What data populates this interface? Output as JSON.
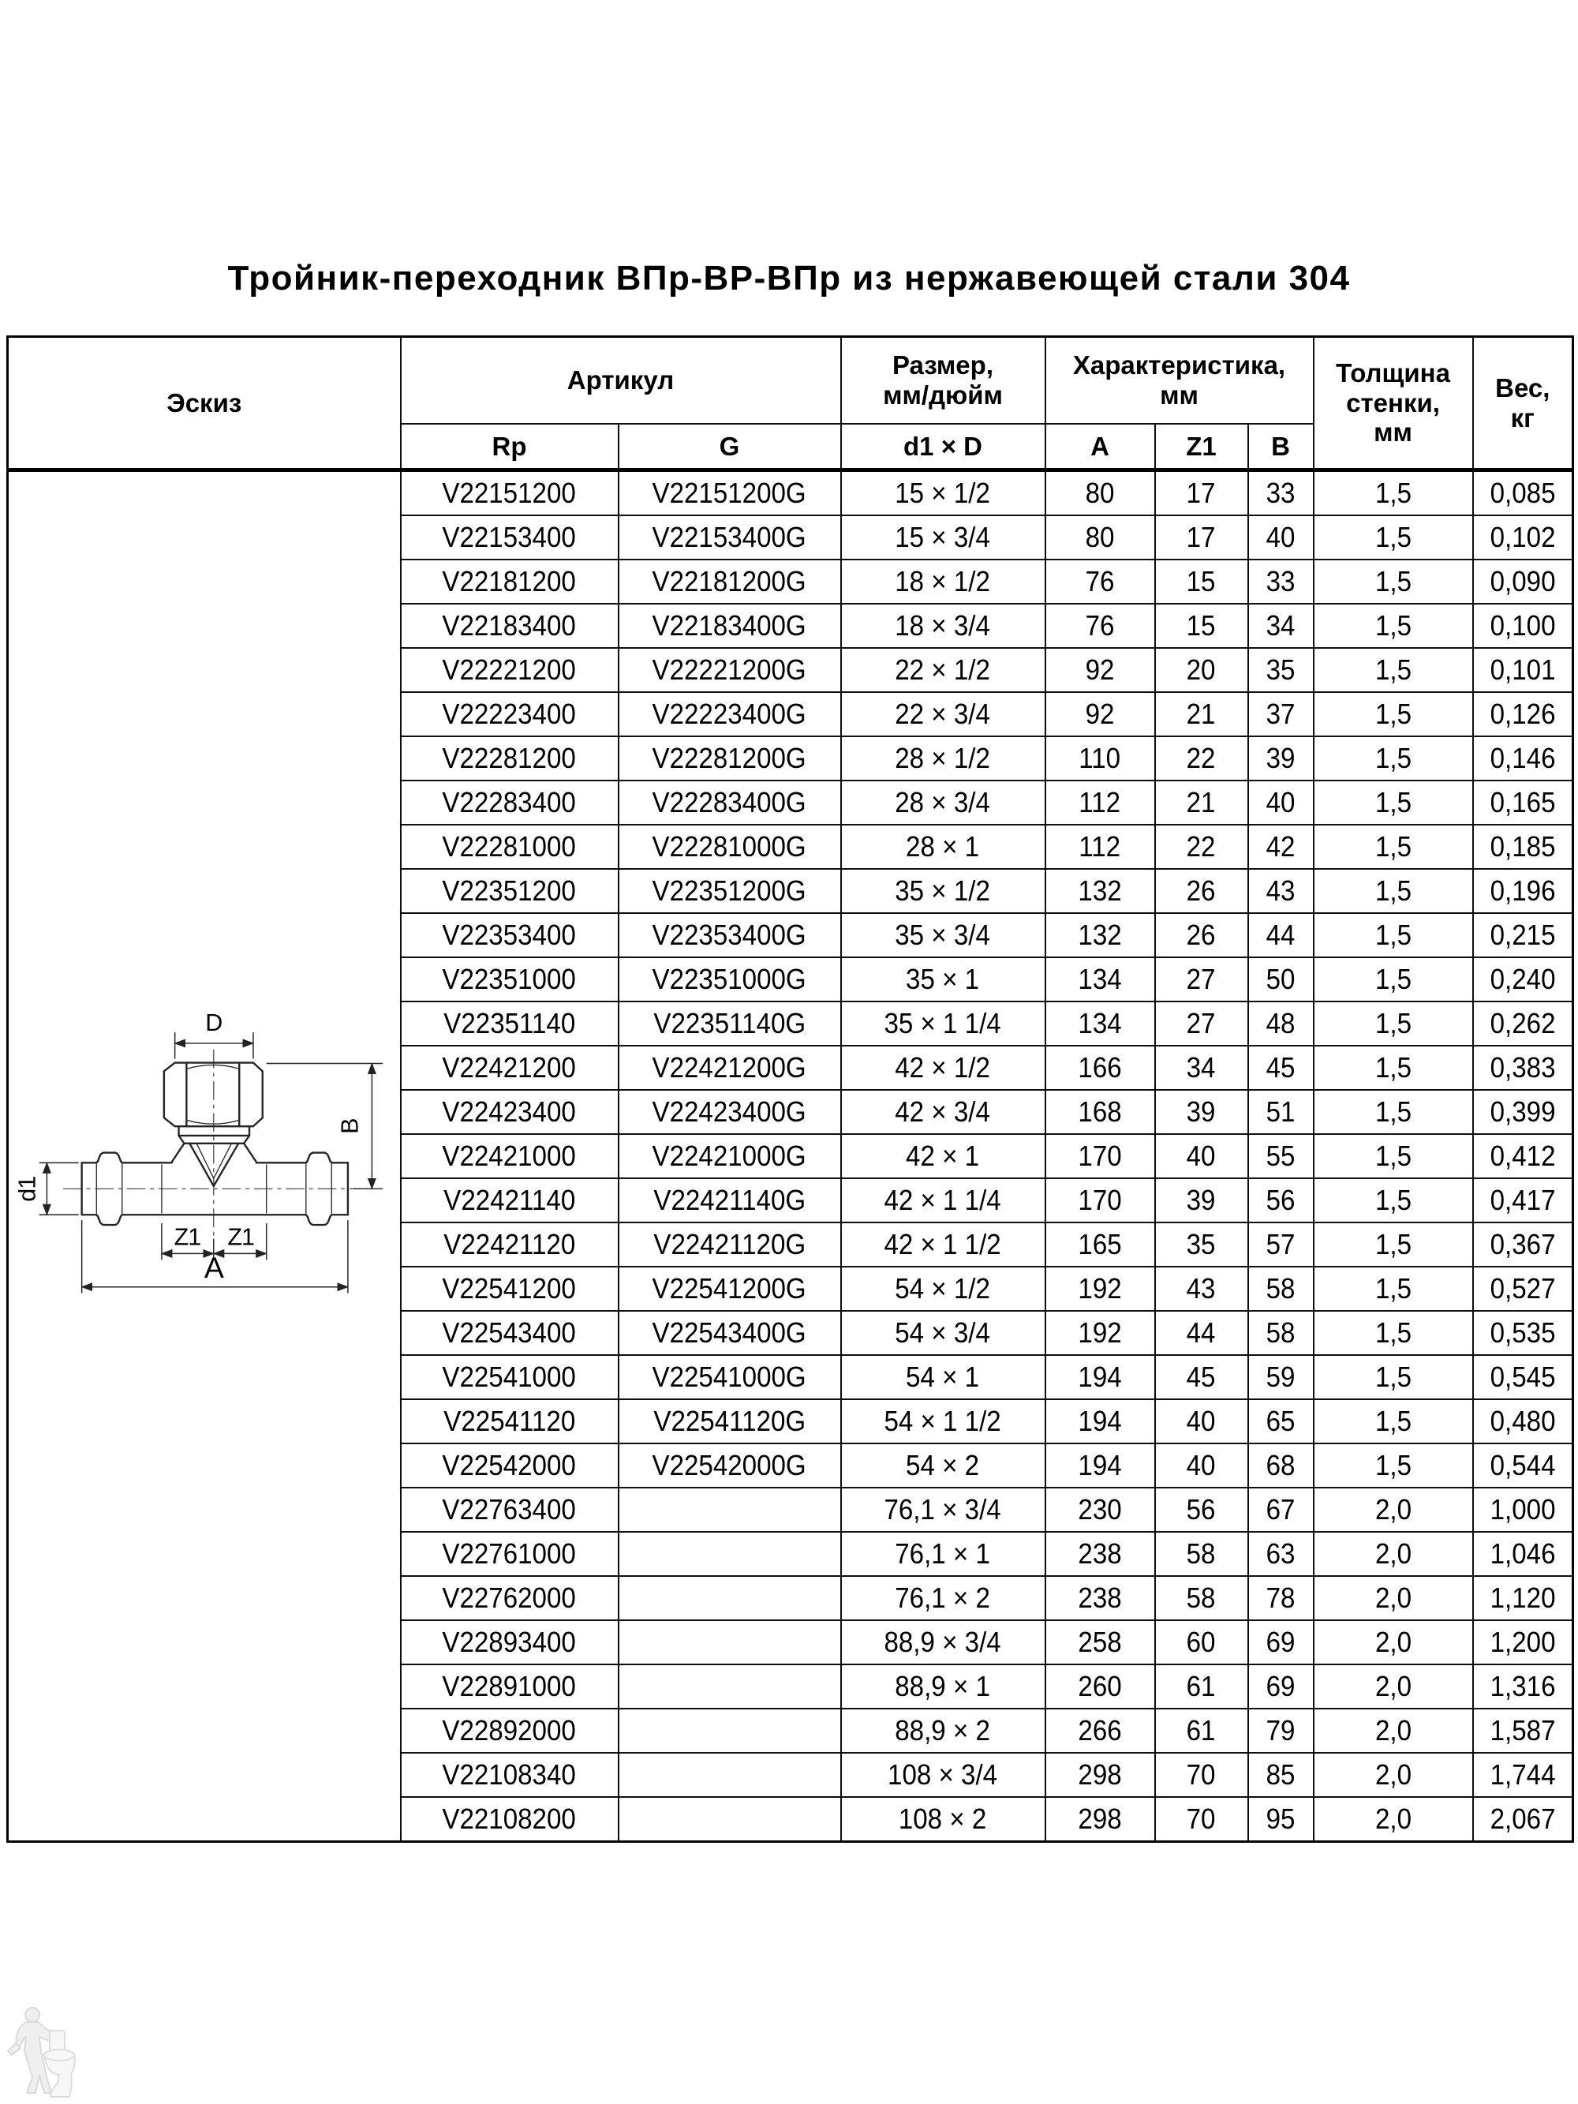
{
  "page": {
    "title": "Тройник-переходник ВПр-ВР-ВПр из нержавеющей стали 304"
  },
  "table": {
    "header": {
      "sketch": "Эскиз",
      "article": "Артикул",
      "rp": "Rp",
      "g": "G",
      "size": "Размер,\nмм/дюйм",
      "size_sub": "d1 × D",
      "characteristics": "Характеристика,\nмм",
      "a": "A",
      "z1": "Z1",
      "b": "B",
      "wall": "Толщина\nстенки,\nмм",
      "weight": "Вес,\nкг"
    },
    "rows": [
      [
        "V22151200",
        "V22151200G",
        "15 × 1/2",
        "80",
        "17",
        "33",
        "1,5",
        "0,085"
      ],
      [
        "V22153400",
        "V22153400G",
        "15 × 3/4",
        "80",
        "17",
        "40",
        "1,5",
        "0,102"
      ],
      [
        "V22181200",
        "V22181200G",
        "18 × 1/2",
        "76",
        "15",
        "33",
        "1,5",
        "0,090"
      ],
      [
        "V22183400",
        "V22183400G",
        "18 × 3/4",
        "76",
        "15",
        "34",
        "1,5",
        "0,100"
      ],
      [
        "V22221200",
        "V22221200G",
        "22 × 1/2",
        "92",
        "20",
        "35",
        "1,5",
        "0,101"
      ],
      [
        "V22223400",
        "V22223400G",
        "22 × 3/4",
        "92",
        "21",
        "37",
        "1,5",
        "0,126"
      ],
      [
        "V22281200",
        "V22281200G",
        "28 × 1/2",
        "110",
        "22",
        "39",
        "1,5",
        "0,146"
      ],
      [
        "V22283400",
        "V22283400G",
        "28 × 3/4",
        "112",
        "21",
        "40",
        "1,5",
        "0,165"
      ],
      [
        "V22281000",
        "V22281000G",
        "28 × 1",
        "112",
        "22",
        "42",
        "1,5",
        "0,185"
      ],
      [
        "V22351200",
        "V22351200G",
        "35 × 1/2",
        "132",
        "26",
        "43",
        "1,5",
        "0,196"
      ],
      [
        "V22353400",
        "V22353400G",
        "35 × 3/4",
        "132",
        "26",
        "44",
        "1,5",
        "0,215"
      ],
      [
        "V22351000",
        "V22351000G",
        "35 × 1",
        "134",
        "27",
        "50",
        "1,5",
        "0,240"
      ],
      [
        "V22351140",
        "V22351140G",
        "35 × 1 1/4",
        "134",
        "27",
        "48",
        "1,5",
        "0,262"
      ],
      [
        "V22421200",
        "V22421200G",
        "42 × 1/2",
        "166",
        "34",
        "45",
        "1,5",
        "0,383"
      ],
      [
        "V22423400",
        "V22423400G",
        "42 × 3/4",
        "168",
        "39",
        "51",
        "1,5",
        "0,399"
      ],
      [
        "V22421000",
        "V22421000G",
        "42 × 1",
        "170",
        "40",
        "55",
        "1,5",
        "0,412"
      ],
      [
        "V22421140",
        "V22421140G",
        "42 × 1 1/4",
        "170",
        "39",
        "56",
        "1,5",
        "0,417"
      ],
      [
        "V22421120",
        "V22421120G",
        "42 × 1 1/2",
        "165",
        "35",
        "57",
        "1,5",
        "0,367"
      ],
      [
        "V22541200",
        "V22541200G",
        "54 × 1/2",
        "192",
        "43",
        "58",
        "1,5",
        "0,527"
      ],
      [
        "V22543400",
        "V22543400G",
        "54 × 3/4",
        "192",
        "44",
        "58",
        "1,5",
        "0,535"
      ],
      [
        "V22541000",
        "V22541000G",
        "54 × 1",
        "194",
        "45",
        "59",
        "1,5",
        "0,545"
      ],
      [
        "V22541120",
        "V22541120G",
        "54 × 1 1/2",
        "194",
        "40",
        "65",
        "1,5",
        "0,480"
      ],
      [
        "V22542000",
        "V22542000G",
        "54 × 2",
        "194",
        "40",
        "68",
        "1,5",
        "0,544"
      ],
      [
        "V22763400",
        "",
        "76,1 × 3/4",
        "230",
        "56",
        "67",
        "2,0",
        "1,000"
      ],
      [
        "V22761000",
        "",
        "76,1 × 1",
        "238",
        "58",
        "63",
        "2,0",
        "1,046"
      ],
      [
        "V22762000",
        "",
        "76,1 × 2",
        "238",
        "58",
        "78",
        "2,0",
        "1,120"
      ],
      [
        "V22893400",
        "",
        "88,9 × 3/4",
        "258",
        "60",
        "69",
        "2,0",
        "1,200"
      ],
      [
        "V22891000",
        "",
        "88,9 × 1",
        "260",
        "61",
        "69",
        "2,0",
        "1,316"
      ],
      [
        "V22892000",
        "",
        "88,9 × 2",
        "266",
        "61",
        "79",
        "2,0",
        "1,587"
      ],
      [
        "V22108340",
        "",
        "108 × 3/4",
        "298",
        "70",
        "85",
        "2,0",
        "1,744"
      ],
      [
        "V22108200",
        "",
        "108 × 2",
        "298",
        "70",
        "95",
        "2,0",
        "2,067"
      ]
    ]
  },
  "sketch": {
    "labels": {
      "d": "D",
      "b": "B",
      "d1": "d1",
      "z1": "Z1",
      "a": "A"
    }
  },
  "icons": {
    "watermark": "plumber-with-toilet-icon"
  }
}
